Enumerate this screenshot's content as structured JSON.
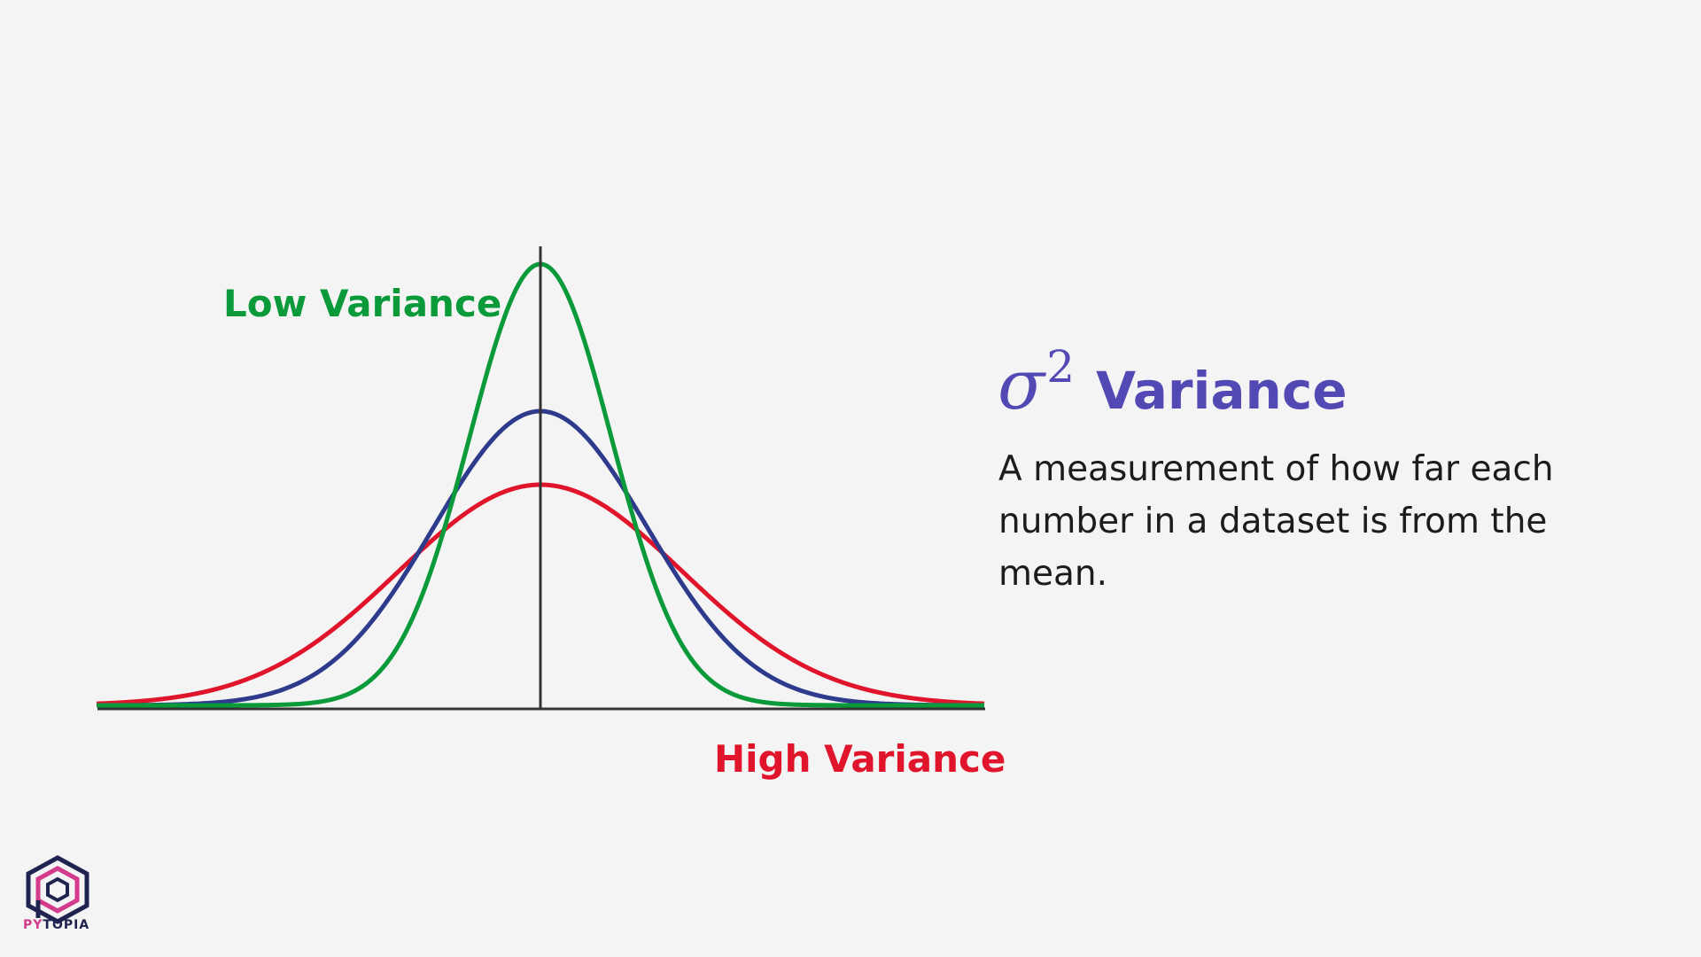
{
  "chart_data": {
    "type": "line",
    "title": "",
    "xlabel": "",
    "ylabel": "",
    "xlim": [
      -5,
      5
    ],
    "mean": 0,
    "series": [
      {
        "name": "Low Variance",
        "sigma": 0.8,
        "color": "#0a9a3a"
      },
      {
        "name": "",
        "sigma": 1.2,
        "color": "#2e3a8c"
      },
      {
        "name": "High Variance",
        "sigma": 1.6,
        "color": "#e0152b"
      }
    ],
    "grid": false
  },
  "labels": {
    "low": "Low Variance",
    "high": "High Variance"
  },
  "info": {
    "symbol": "σ",
    "exponent": "2",
    "title": "Variance",
    "description": "A measurement of how far each number in a dataset is from the mean."
  },
  "brand": {
    "name_prefix": "PY",
    "name_rest": "TOPIA"
  },
  "colors": {
    "background": "#f4f4f4",
    "axis": "#333333",
    "accent": "#5249b4",
    "low": "#0a9a3a",
    "mid": "#2e3a8c",
    "high": "#e0152b"
  }
}
